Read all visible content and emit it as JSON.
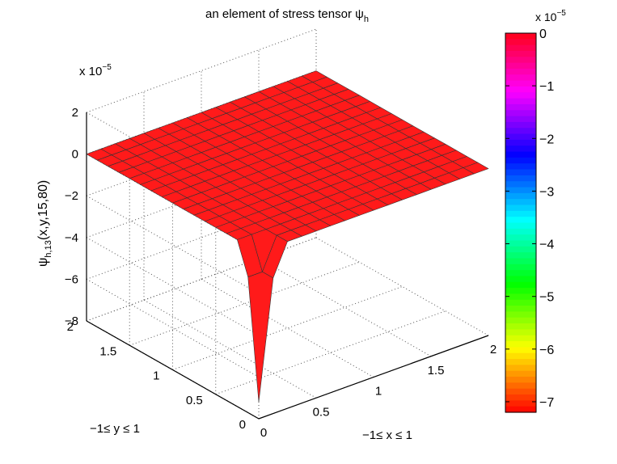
{
  "chart_data": {
    "type": "surface",
    "title": "an element of stress tensor ψ",
    "title_sub": "h",
    "xlabel": "−1≤ x ≤ 1",
    "ylabel": "−1≤ y ≤ 1",
    "zlabel": {
      "base": "ψ",
      "sub": "h,13",
      "rest": "(x,y,15,80)"
    },
    "z_exponent": {
      "base": "x 10",
      "power": "−5"
    },
    "x_ticks": [
      "0",
      "0.5",
      "1",
      "1.5",
      "2"
    ],
    "x_tick_values": [
      0,
      0.5,
      1,
      1.5,
      2
    ],
    "y_ticks": [
      "0",
      "0.5",
      "1",
      "1.5",
      "2"
    ],
    "y_tick_values": [
      0,
      0.5,
      1,
      1.5,
      2
    ],
    "z_ticks": [
      "−8",
      "−6",
      "−4",
      "−2",
      "0",
      "2"
    ],
    "z_tick_values": [
      -8,
      -6,
      -4,
      -2,
      0,
      2
    ],
    "xlim": [
      0,
      2
    ],
    "ylim": [
      0,
      2
    ],
    "zlim": [
      -8,
      2
    ],
    "grid": true,
    "surface_color": "#ff1a1a",
    "mesh_color": "#333333",
    "grid_points": 17,
    "peak": {
      "x": 0,
      "y": 0,
      "z": -7.2
    },
    "near_peak": {
      "z": -1.5
    },
    "colorbar": {
      "exponent": {
        "base": "x 10",
        "power": "−5"
      },
      "ticks": [
        "0",
        "−1",
        "−2",
        "−3",
        "−4",
        "−5",
        "−6",
        "−7"
      ],
      "tick_values": [
        0,
        -1,
        -2,
        -3,
        -4,
        -5,
        -6,
        -7
      ],
      "range": [
        -7.2,
        0
      ],
      "colormap": "hsv-reversed"
    }
  }
}
